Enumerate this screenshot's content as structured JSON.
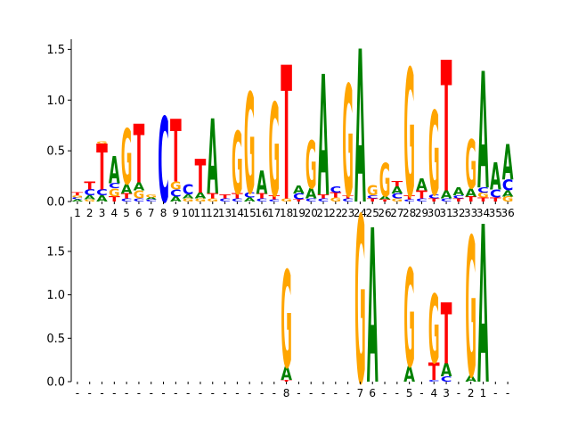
{
  "colors": {
    "A": "#008000",
    "C": "#0000ff",
    "G": "#ffa500",
    "T": "#ff0000",
    "axis": "#000000",
    "background": "#ffffff"
  },
  "chart_data": [
    {
      "type": "sequence_logo",
      "title": "",
      "xlabel": "",
      "ylabel": "",
      "ylim": [
        0,
        1.6
      ],
      "yticks": [
        "0.0",
        "0.5",
        "1.0",
        "1.5"
      ],
      "ytick_values": [
        0,
        0.5,
        1.0,
        1.5
      ],
      "xtick_labels": [
        "1",
        "2",
        "3",
        "4",
        "5",
        "6",
        "7",
        "8",
        "9",
        "10",
        "11",
        "12",
        "13",
        "14",
        "15",
        "16",
        "17",
        "18",
        "19",
        "20",
        "21",
        "22",
        "23",
        "24",
        "25",
        "26",
        "27",
        "28",
        "29",
        "30",
        "31",
        "32",
        "33",
        "34",
        "35",
        "36"
      ],
      "positions": [
        [
          [
            "A",
            0.02
          ],
          [
            "C",
            0.02
          ],
          [
            "G",
            0.02
          ],
          [
            "T",
            0.03
          ]
        ],
        [
          [
            "G",
            0.02
          ],
          [
            "A",
            0.04
          ],
          [
            "C",
            0.06
          ],
          [
            "T",
            0.08
          ]
        ],
        [
          [
            "A",
            0.06
          ],
          [
            "C",
            0.06
          ],
          [
            "T",
            0.45
          ],
          [
            "G",
            0.02
          ]
        ],
        [
          [
            "T",
            0.05
          ],
          [
            "G",
            0.08
          ],
          [
            "C",
            0.05
          ],
          [
            "A",
            0.27
          ]
        ],
        [
          [
            "C",
            0.03
          ],
          [
            "T",
            0.05
          ],
          [
            "A",
            0.09
          ],
          [
            "G",
            0.55
          ]
        ],
        [
          [
            "C",
            0.03
          ],
          [
            "G",
            0.08
          ],
          [
            "A",
            0.08
          ],
          [
            "T",
            0.58
          ]
        ],
        [
          [
            "C",
            0.02
          ],
          [
            "A",
            0.02
          ],
          [
            "G",
            0.03
          ]
        ],
        [
          [
            "C",
            0.84
          ]
        ],
        [
          [
            "A",
            0.05
          ],
          [
            "C",
            0.07
          ],
          [
            "G",
            0.08
          ],
          [
            "T",
            0.62
          ]
        ],
        [
          [
            "G",
            0.03
          ],
          [
            "A",
            0.04
          ],
          [
            "C",
            0.1
          ]
        ],
        [
          [
            "G",
            0.03
          ],
          [
            "A",
            0.06
          ],
          [
            "T",
            0.33
          ]
        ],
        [
          [
            "G",
            0.03
          ],
          [
            "T",
            0.05
          ],
          [
            "A",
            0.74
          ]
        ],
        [
          [
            "C",
            0.03
          ],
          [
            "T",
            0.04
          ]
        ],
        [
          [
            "C",
            0.03
          ],
          [
            "T",
            0.05
          ],
          [
            "G",
            0.62
          ]
        ],
        [
          [
            "A",
            0.04
          ],
          [
            "C",
            0.05
          ],
          [
            "G",
            0.99
          ]
        ],
        [
          [
            "C",
            0.03
          ],
          [
            "T",
            0.05
          ],
          [
            "A",
            0.23
          ]
        ],
        [
          [
            "C",
            0.02
          ],
          [
            "T",
            0.04
          ],
          [
            "G",
            0.92
          ]
        ],
        [
          [
            "G",
            0.03
          ],
          [
            "T",
            1.32
          ]
        ],
        [
          [
            "T",
            0.02
          ],
          [
            "C",
            0.06
          ],
          [
            "A",
            0.08
          ]
        ],
        [
          [
            "C",
            0.03
          ],
          [
            "A",
            0.1
          ],
          [
            "G",
            0.47
          ]
        ],
        [
          [
            "C",
            0.03
          ],
          [
            "T",
            0.04
          ],
          [
            "A",
            1.19
          ]
        ],
        [
          [
            "G",
            0.04
          ],
          [
            "T",
            0.05
          ],
          [
            "C",
            0.06
          ]
        ],
        [
          [
            "C",
            0.03
          ],
          [
            "T",
            0.03
          ],
          [
            "G",
            1.1
          ]
        ],
        [
          [
            "A",
            1.51
          ]
        ],
        [
          [
            "T",
            0.03
          ],
          [
            "C",
            0.03
          ],
          [
            "G",
            0.1
          ]
        ],
        [
          [
            "T",
            0.02
          ],
          [
            "A",
            0.03
          ],
          [
            "G",
            0.33
          ]
        ],
        [
          [
            "G",
            0.03
          ],
          [
            "C",
            0.05
          ],
          [
            "A",
            0.07
          ],
          [
            "T",
            0.05
          ]
        ],
        [
          [
            "C",
            0.02
          ],
          [
            "T",
            0.04
          ],
          [
            "G",
            1.26
          ]
        ],
        [
          [
            "C",
            0.03
          ],
          [
            "T",
            0.08
          ],
          [
            "A",
            0.12
          ]
        ],
        [
          [
            "T",
            0.03
          ],
          [
            "C",
            0.04
          ],
          [
            "G",
            0.83
          ]
        ],
        [
          [
            "C",
            0.03
          ],
          [
            "A",
            0.08
          ],
          [
            "T",
            1.29
          ]
        ],
        [
          [
            "T",
            0.03
          ],
          [
            "C",
            0.03
          ],
          [
            "A",
            0.08
          ]
        ],
        [
          [
            "T",
            0.05
          ],
          [
            "A",
            0.08
          ],
          [
            "G",
            0.48
          ]
        ],
        [
          [
            "T",
            0.04
          ],
          [
            "G",
            0.05
          ],
          [
            "C",
            0.05
          ],
          [
            "A",
            1.15
          ]
        ],
        [
          [
            "T",
            0.04
          ],
          [
            "C",
            0.08
          ],
          [
            "A",
            0.27
          ]
        ],
        [
          [
            "G",
            0.05
          ],
          [
            "A",
            0.06
          ],
          [
            "C",
            0.11
          ],
          [
            "A",
            0.35
          ]
        ]
      ]
    },
    {
      "type": "sequence_logo",
      "title": "",
      "xlabel": "",
      "ylabel": "",
      "ylim": [
        0,
        1.9
      ],
      "yticks": [
        "0.0",
        "0.5",
        "1.0",
        "1.5"
      ],
      "ytick_values": [
        0,
        0.5,
        1.0,
        1.5
      ],
      "xtick_labels": [
        "-",
        "-",
        "-",
        "-",
        "-",
        "-",
        "-",
        "-",
        "-",
        "-",
        "-",
        "-",
        "-",
        "-",
        "-",
        "-",
        "-",
        "8",
        "-",
        "-",
        "-",
        "-",
        "-",
        "7",
        "6",
        "-",
        "-",
        "5",
        "-",
        "4",
        "3",
        "-",
        "2",
        "1",
        "-",
        "-"
      ],
      "positions": [
        [],
        [],
        [],
        [],
        [],
        [],
        [],
        [],
        [],
        [],
        [],
        [],
        [],
        [],
        [],
        [],
        [],
        [
          [
            "T",
            0.02
          ],
          [
            "A",
            0.15
          ],
          [
            "G",
            1.12
          ]
        ],
        [],
        [],
        [],
        [],
        [],
        [
          [
            "G",
            1.92
          ]
        ],
        [
          [
            "A",
            1.78
          ]
        ],
        [],
        [],
        [
          [
            "A",
            0.18
          ],
          [
            "G",
            1.13
          ]
        ],
        [],
        [
          [
            "C",
            0.02
          ],
          [
            "T",
            0.2
          ],
          [
            "G",
            0.79
          ]
        ],
        [
          [
            "C",
            0.06
          ],
          [
            "A",
            0.15
          ],
          [
            "T",
            0.7
          ]
        ],
        [],
        [
          [
            "A",
            0.07
          ],
          [
            "G",
            1.61
          ]
        ],
        [
          [
            "A",
            1.82
          ]
        ],
        [],
        []
      ]
    }
  ]
}
